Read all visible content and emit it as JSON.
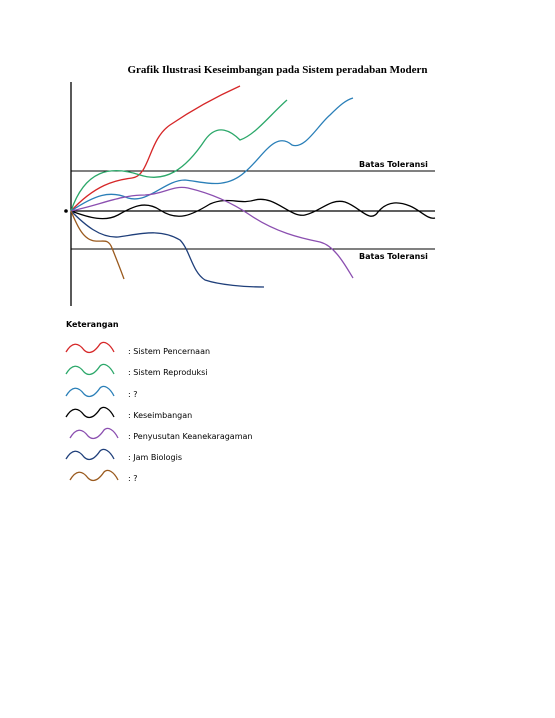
{
  "title": "Grafik Ilustrasi Keseimbangan pada Sistem peradaban Modern",
  "tolerance_upper_label": "Batas Toleransi",
  "tolerance_lower_label": "Batas Toleransi",
  "legend": {
    "heading": "Keterangan",
    "items": [
      {
        "text": ": Sistem Pencernaan",
        "color": "#d62728"
      },
      {
        "text": ": Sistem Reproduksi",
        "color": "#2ca86a"
      },
      {
        "text": ": ?",
        "color": "#2a7fb8"
      },
      {
        "text": ": Keseimbangan",
        "color": "#000000"
      },
      {
        "text": ": Penyusutan Keanekaragaman",
        "color": "#8b4fb0"
      },
      {
        "text": ": Jam Biologis",
        "color": "#1f3f7a"
      },
      {
        "text": ": ?",
        "color": "#9a5a1e"
      }
    ]
  }
}
